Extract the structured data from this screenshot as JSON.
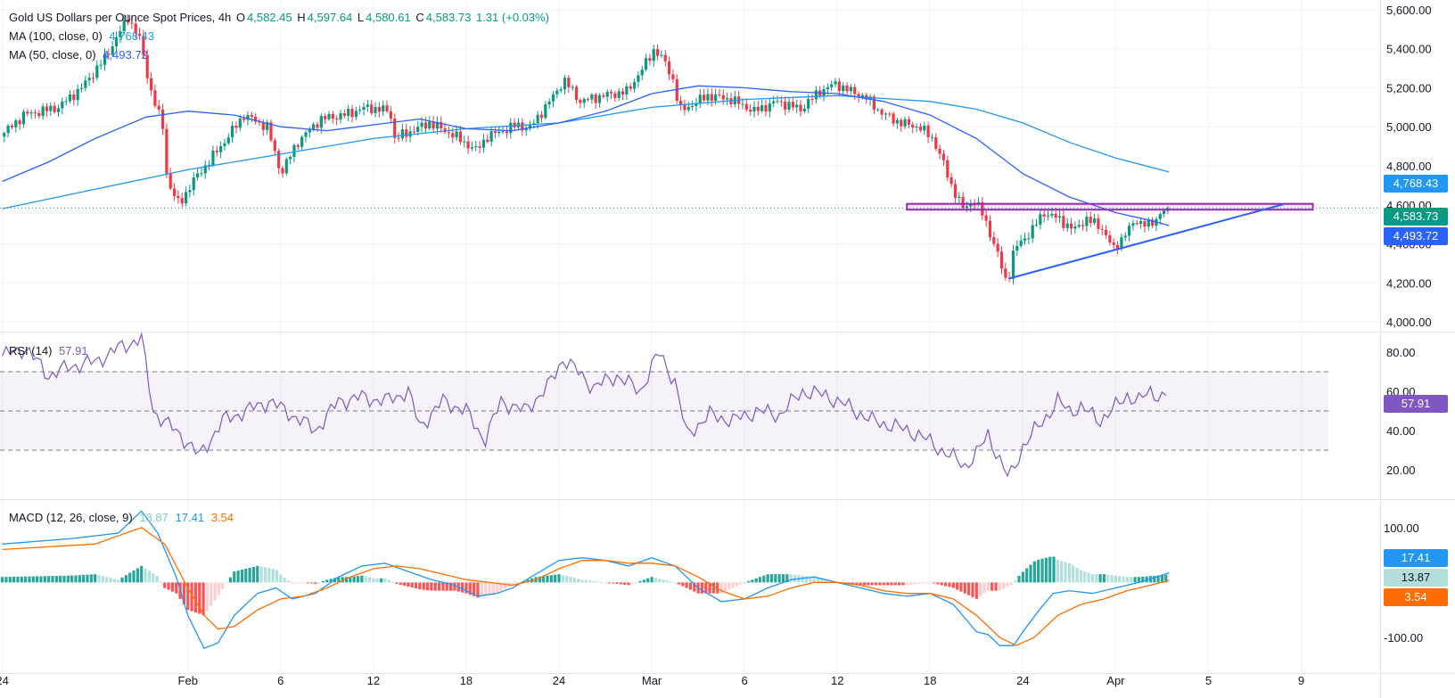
{
  "header": {
    "title": "Gold US Dollars per Ounce Spot Prices, 4h",
    "o_label": "O",
    "o": "4,582.45",
    "h_label": "H",
    "h": "4,597.64",
    "l_label": "L",
    "l": "4,580.61",
    "c_label": "C",
    "c": "4,583.73",
    "change": "1.31 (+0.03%)",
    "ma100_label": "MA (100, close, 0)",
    "ma100_value": "4,768.43",
    "ma50_label": "MA (50, close, 0)",
    "ma50_value": "4,493.72"
  },
  "rsi_header": {
    "label": "RSI (14)",
    "value": "57.91"
  },
  "macd_header": {
    "label": "MACD (12, 26, close, 9)",
    "hist": "13.87",
    "macd": "17.41",
    "signal": "3.54"
  },
  "badges": {
    "ma100": "4,768.43",
    "price": "4,583.73",
    "ma50": "4,493.72",
    "rsi": "57.91",
    "macd": "17.41",
    "hist": "13.87",
    "signal": "3.54"
  },
  "colors": {
    "up": "#089981",
    "down": "#f23645",
    "ma50": "#2962ff",
    "ma100": "#2196f3",
    "rsi": "#7e57c2",
    "macd": "#2196f3",
    "signal": "#ff6d00",
    "resistance": "#9c27b0",
    "trendline": "#2962ff"
  },
  "chart_data": [
    {
      "type": "candlestick",
      "title": "Gold US Dollars per Ounce Spot Prices, 4h",
      "ylim": [
        3950,
        5650
      ],
      "y_ticks": [
        "5,600.00",
        "5,400.00",
        "5,200.00",
        "5,000.00",
        "4,800.00",
        "4,600.00",
        "4,400.00",
        "4,200.00",
        "4,000.00"
      ],
      "y_tick_values": [
        5600,
        5400,
        5200,
        5000,
        4800,
        4600,
        4400,
        4200,
        4000
      ],
      "x_ticks": [
        "24",
        "Feb",
        "6",
        "12",
        "18",
        "24",
        "Mar",
        "6",
        "12",
        "18",
        "24",
        "Apr",
        "5",
        "9"
      ],
      "x_tick_days": [
        -8,
        0,
        4,
        8,
        12,
        16,
        20,
        24,
        28,
        32,
        36,
        40,
        44,
        48
      ],
      "x_range_days": [
        -8.1,
        51.4
      ],
      "anchors": [
        [
          -8,
          4950
        ],
        [
          -7,
          5060
        ],
        [
          -5.5,
          5100
        ],
        [
          -4.5,
          5200
        ],
        [
          -3.5,
          5350
        ],
        [
          -2.5,
          5560
        ],
        [
          -2,
          5450
        ],
        [
          -1.5,
          5180
        ],
        [
          -1,
          5000
        ],
        [
          -0.8,
          4720
        ],
        [
          -0.3,
          4600
        ],
        [
          0.3,
          4720
        ],
        [
          1.5,
          4900
        ],
        [
          2.5,
          5060
        ],
        [
          3.5,
          5000
        ],
        [
          4.1,
          4760
        ],
        [
          4.8,
          4920
        ],
        [
          5.8,
          5040
        ],
        [
          6.8,
          5060
        ],
        [
          7.8,
          5100
        ],
        [
          8.8,
          5080
        ],
        [
          9.0,
          4940
        ],
        [
          10.5,
          5020
        ],
        [
          11.5,
          4960
        ],
        [
          12.5,
          4880
        ],
        [
          13.0,
          4950
        ],
        [
          14.3,
          5010
        ],
        [
          14.8,
          4990
        ],
        [
          15.8,
          5150
        ],
        [
          16.3,
          5240
        ],
        [
          17.0,
          5130
        ],
        [
          18.0,
          5160
        ],
        [
          19.0,
          5180
        ],
        [
          19.7,
          5300
        ],
        [
          20.2,
          5400
        ],
        [
          20.7,
          5320
        ],
        [
          21.0,
          5240
        ],
        [
          21.3,
          5080
        ],
        [
          22.5,
          5160
        ],
        [
          23.5,
          5140
        ],
        [
          24.5,
          5080
        ],
        [
          25.5,
          5130
        ],
        [
          26.5,
          5090
        ],
        [
          27.3,
          5180
        ],
        [
          28.0,
          5220
        ],
        [
          28.7,
          5180
        ],
        [
          29.3,
          5150
        ],
        [
          30.0,
          5070
        ],
        [
          30.8,
          5020
        ],
        [
          31.6,
          5000
        ],
        [
          32.2,
          4940
        ],
        [
          32.6,
          4830
        ],
        [
          33.0,
          4700
        ],
        [
          33.5,
          4580
        ],
        [
          34.0,
          4620
        ],
        [
          34.4,
          4540
        ],
        [
          34.9,
          4380
        ],
        [
          35.4,
          4190
        ],
        [
          35.7,
          4370
        ],
        [
          36.4,
          4460
        ],
        [
          37.0,
          4560
        ],
        [
          37.6,
          4530
        ],
        [
          38.3,
          4470
        ],
        [
          38.8,
          4530
        ],
        [
          39.5,
          4480
        ],
        [
          40.0,
          4370
        ],
        [
          40.4,
          4440
        ],
        [
          41.0,
          4520
        ],
        [
          41.6,
          4490
        ],
        [
          42.0,
          4560
        ],
        [
          42.3,
          4583.73
        ]
      ],
      "ma50": [
        [
          -8,
          4720
        ],
        [
          -6,
          4820
        ],
        [
          -4,
          4940
        ],
        [
          -1.8,
          5050
        ],
        [
          0,
          5080
        ],
        [
          2,
          5060
        ],
        [
          4,
          5000
        ],
        [
          6,
          4980
        ],
        [
          8,
          5010
        ],
        [
          10,
          5040
        ],
        [
          12,
          4990
        ],
        [
          14,
          4980
        ],
        [
          16,
          5020
        ],
        [
          18,
          5080
        ],
        [
          20,
          5170
        ],
        [
          22,
          5210
        ],
        [
          24,
          5200
        ],
        [
          26,
          5180
        ],
        [
          28,
          5170
        ],
        [
          30,
          5130
        ],
        [
          32,
          5060
        ],
        [
          34,
          4940
        ],
        [
          36,
          4760
        ],
        [
          38,
          4640
        ],
        [
          40,
          4560
        ],
        [
          41.5,
          4520
        ],
        [
          42.3,
          4493.72
        ]
      ],
      "ma100": [
        [
          -8,
          4580
        ],
        [
          -4,
          4680
        ],
        [
          0,
          4780
        ],
        [
          4,
          4860
        ],
        [
          8,
          4940
        ],
        [
          12,
          4990
        ],
        [
          16,
          5020
        ],
        [
          20,
          5100
        ],
        [
          24,
          5140
        ],
        [
          28,
          5160
        ],
        [
          32,
          5130
        ],
        [
          34,
          5090
        ],
        [
          36,
          5020
        ],
        [
          38,
          4920
        ],
        [
          40,
          4840
        ],
        [
          42.3,
          4768.43
        ]
      ],
      "resistance": {
        "price_top": 4605,
        "price_bottom": 4575,
        "day_start": 31.0,
        "day_end": 48.5
      },
      "trendline": [
        [
          35.4,
          4222
        ],
        [
          47.3,
          4605
        ]
      ],
      "last_price": 4583.73
    },
    {
      "type": "line",
      "title": "RSI (14)",
      "ylim": [
        5,
        90
      ],
      "y_ticks": [
        "80.00",
        "60.00",
        "40.00",
        "20.00"
      ],
      "y_tick_values": [
        80,
        60,
        40,
        20
      ],
      "band": [
        30,
        70
      ],
      "midline": 50,
      "values": [
        [
          -8,
          78
        ],
        [
          -7,
          82
        ],
        [
          -6,
          68
        ],
        [
          -5,
          73
        ],
        [
          -4,
          75
        ],
        [
          -3,
          82
        ],
        [
          -2,
          87
        ],
        [
          -1.5,
          50
        ],
        [
          0,
          34
        ],
        [
          0.5,
          27
        ],
        [
          1.5,
          45
        ],
        [
          2.5,
          50
        ],
        [
          3.5,
          55
        ],
        [
          4.5,
          48
        ],
        [
          5.5,
          40
        ],
        [
          6.5,
          55
        ],
        [
          7.5,
          57
        ],
        [
          8.5,
          55
        ],
        [
          9.5,
          60
        ],
        [
          10.0,
          42
        ],
        [
          11.0,
          55
        ],
        [
          12.0,
          50
        ],
        [
          12.8,
          35
        ],
        [
          13.5,
          55
        ],
        [
          14.5,
          50
        ],
        [
          15.5,
          62
        ],
        [
          16.2,
          77
        ],
        [
          16.8,
          70
        ],
        [
          17.5,
          62
        ],
        [
          18.5,
          68
        ],
        [
          19.5,
          60
        ],
        [
          20.3,
          80
        ],
        [
          21.0,
          65
        ],
        [
          21.5,
          38
        ],
        [
          22.5,
          48
        ],
        [
          23.5,
          45
        ],
        [
          24.5,
          50
        ],
        [
          25.5,
          48
        ],
        [
          26.5,
          60
        ],
        [
          27.5,
          58
        ],
        [
          28.5,
          52
        ],
        [
          29.5,
          45
        ],
        [
          30.5,
          42
        ],
        [
          31.5,
          38
        ],
        [
          32.5,
          30
        ],
        [
          33.5,
          22
        ],
        [
          34.0,
          28
        ],
        [
          34.5,
          38
        ],
        [
          35.0,
          25
        ],
        [
          35.4,
          15
        ],
        [
          36.0,
          32
        ],
        [
          37.0,
          47
        ],
        [
          37.5,
          55
        ],
        [
          38.0,
          50
        ],
        [
          38.5,
          52
        ],
        [
          39.3,
          45
        ],
        [
          40.0,
          52
        ],
        [
          40.5,
          58
        ],
        [
          41.0,
          55
        ],
        [
          41.5,
          60
        ],
        [
          42.0,
          57
        ],
        [
          42.3,
          57.91
        ]
      ],
      "last_value": 57.91
    },
    {
      "type": "macd",
      "title": "MACD (12, 26, close, 9)",
      "ylim": [
        -165,
        150
      ],
      "y_ticks": [
        "100.00",
        "-100.00"
      ],
      "y_tick_values": [
        100,
        -100
      ],
      "macd": [
        [
          -8,
          70
        ],
        [
          -5,
          80
        ],
        [
          -3,
          90
        ],
        [
          -2,
          130
        ],
        [
          -1.3,
          90
        ],
        [
          -0.5,
          10
        ],
        [
          0,
          -60
        ],
        [
          0.7,
          -120
        ],
        [
          1.3,
          -110
        ],
        [
          2,
          -60
        ],
        [
          3,
          -20
        ],
        [
          3.8,
          -10
        ],
        [
          4.5,
          -30
        ],
        [
          5.5,
          -20
        ],
        [
          6.5,
          10
        ],
        [
          7.5,
          30
        ],
        [
          8.5,
          35
        ],
        [
          9.5,
          20
        ],
        [
          10.5,
          5
        ],
        [
          11.5,
          -5
        ],
        [
          12.5,
          -25
        ],
        [
          13.3,
          -20
        ],
        [
          14,
          -10
        ],
        [
          15,
          15
        ],
        [
          16,
          40
        ],
        [
          17,
          45
        ],
        [
          18,
          40
        ],
        [
          19,
          30
        ],
        [
          20,
          45
        ],
        [
          21,
          30
        ],
        [
          22,
          -10
        ],
        [
          23,
          -35
        ],
        [
          24,
          -30
        ],
        [
          25,
          -10
        ],
        [
          26,
          5
        ],
        [
          27,
          10
        ],
        [
          28,
          0
        ],
        [
          29,
          -10
        ],
        [
          30,
          -20
        ],
        [
          31,
          -25
        ],
        [
          32,
          -20
        ],
        [
          33,
          -40
        ],
        [
          34,
          -90
        ],
        [
          34.5,
          -95
        ],
        [
          35,
          -115
        ],
        [
          35.6,
          -115
        ],
        [
          36,
          -90
        ],
        [
          36.7,
          -50
        ],
        [
          37.3,
          -20
        ],
        [
          38,
          -15
        ],
        [
          39,
          -20
        ],
        [
          40,
          -10
        ],
        [
          41,
          0
        ],
        [
          42.3,
          17.41
        ]
      ],
      "signal": [
        [
          -8,
          60
        ],
        [
          -4,
          70
        ],
        [
          -2,
          100
        ],
        [
          -1,
          70
        ],
        [
          0,
          -10
        ],
        [
          0.7,
          -60
        ],
        [
          1.3,
          -85
        ],
        [
          2,
          -80
        ],
        [
          3,
          -50
        ],
        [
          4,
          -30
        ],
        [
          5,
          -25
        ],
        [
          6,
          -10
        ],
        [
          7,
          10
        ],
        [
          8,
          25
        ],
        [
          9,
          30
        ],
        [
          10,
          25
        ],
        [
          11,
          15
        ],
        [
          12,
          5
        ],
        [
          13,
          0
        ],
        [
          14,
          -5
        ],
        [
          15,
          5
        ],
        [
          16,
          25
        ],
        [
          17,
          40
        ],
        [
          18,
          40
        ],
        [
          19,
          35
        ],
        [
          20,
          35
        ],
        [
          21,
          30
        ],
        [
          22,
          10
        ],
        [
          23,
          -15
        ],
        [
          24,
          -30
        ],
        [
          25,
          -25
        ],
        [
          26,
          -10
        ],
        [
          27,
          0
        ],
        [
          28,
          0
        ],
        [
          29,
          -5
        ],
        [
          30,
          -15
        ],
        [
          31,
          -20
        ],
        [
          32,
          -20
        ],
        [
          33,
          -30
        ],
        [
          34,
          -60
        ],
        [
          35,
          -100
        ],
        [
          35.7,
          -115
        ],
        [
          36.5,
          -100
        ],
        [
          37.5,
          -60
        ],
        [
          38.5,
          -40
        ],
        [
          39.5,
          -30
        ],
        [
          40.5,
          -15
        ],
        [
          41.5,
          -5
        ],
        [
          42.3,
          3.54
        ]
      ],
      "last_macd": 17.41,
      "last_signal": 3.54,
      "last_hist": 13.87
    }
  ]
}
